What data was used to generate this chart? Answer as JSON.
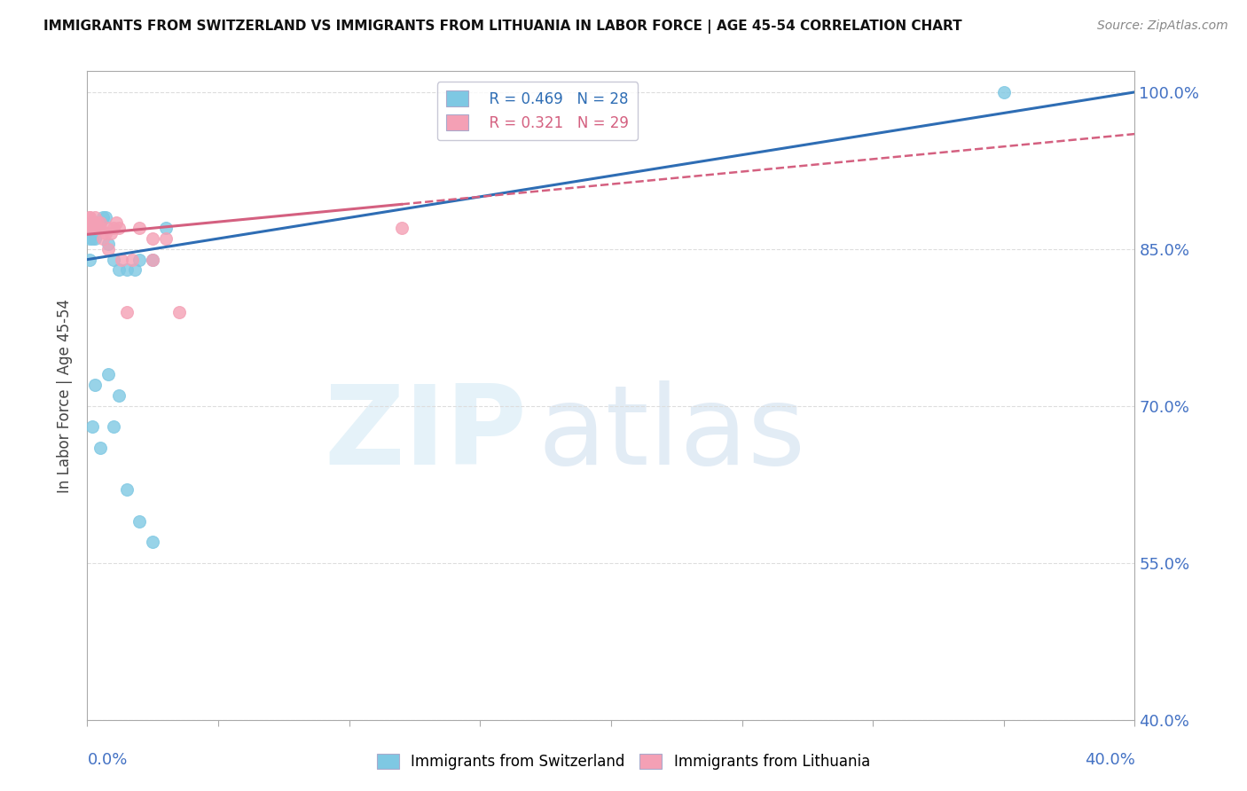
{
  "title": "IMMIGRANTS FROM SWITZERLAND VS IMMIGRANTS FROM LITHUANIA IN LABOR FORCE | AGE 45-54 CORRELATION CHART",
  "source": "Source: ZipAtlas.com",
  "xlabel_bottom_left": "0.0%",
  "xlabel_bottom_right": "40.0%",
  "ylabel": "In Labor Force | Age 45-54",
  "xlim": [
    0.0,
    0.4
  ],
  "ylim": [
    0.4,
    1.02
  ],
  "yticks": [
    0.4,
    0.55,
    0.7,
    0.85,
    1.0
  ],
  "ytick_labels": [
    "40.0%",
    "55.0%",
    "70.0%",
    "85.0%",
    "100.0%"
  ],
  "legend_r1": "R = 0.469   N = 28",
  "legend_r2": "R = 0.321   N = 29",
  "color_swiss": "#7ec8e3",
  "color_lith": "#f4a0b5",
  "color_trend_swiss": "#2e6db4",
  "color_trend_lith": "#d46080",
  "swiss_x": [
    0.001,
    0.001,
    0.002,
    0.002,
    0.003,
    0.003,
    0.004,
    0.005,
    0.006,
    0.007,
    0.008,
    0.01,
    0.012,
    0.015,
    0.018,
    0.02,
    0.025,
    0.03,
    0.01,
    0.005,
    0.003,
    0.008,
    0.012,
    0.002,
    0.015,
    0.02,
    0.025,
    0.35
  ],
  "swiss_y": [
    0.84,
    0.86,
    0.86,
    0.87,
    0.875,
    0.86,
    0.87,
    0.875,
    0.88,
    0.88,
    0.855,
    0.84,
    0.83,
    0.83,
    0.83,
    0.84,
    0.84,
    0.87,
    0.68,
    0.66,
    0.72,
    0.73,
    0.71,
    0.68,
    0.62,
    0.59,
    0.57,
    1.0
  ],
  "lith_x": [
    0.001,
    0.001,
    0.001,
    0.002,
    0.002,
    0.002,
    0.003,
    0.003,
    0.004,
    0.004,
    0.005,
    0.005,
    0.006,
    0.007,
    0.008,
    0.008,
    0.009,
    0.01,
    0.011,
    0.012,
    0.013,
    0.015,
    0.017,
    0.02,
    0.025,
    0.025,
    0.03,
    0.035,
    0.12
  ],
  "lith_y": [
    0.87,
    0.88,
    0.88,
    0.875,
    0.87,
    0.87,
    0.875,
    0.88,
    0.87,
    0.875,
    0.87,
    0.875,
    0.86,
    0.865,
    0.85,
    0.87,
    0.865,
    0.87,
    0.875,
    0.87,
    0.84,
    0.79,
    0.84,
    0.87,
    0.86,
    0.84,
    0.86,
    0.79,
    0.87
  ],
  "background_color": "#ffffff",
  "grid_color": "#dddddd",
  "axis_color": "#aaaaaa",
  "title_color": "#111111",
  "tick_label_color": "#4472c4",
  "watermark_zip_color": "#d0e8f5",
  "watermark_atlas_color": "#b8d0e8"
}
